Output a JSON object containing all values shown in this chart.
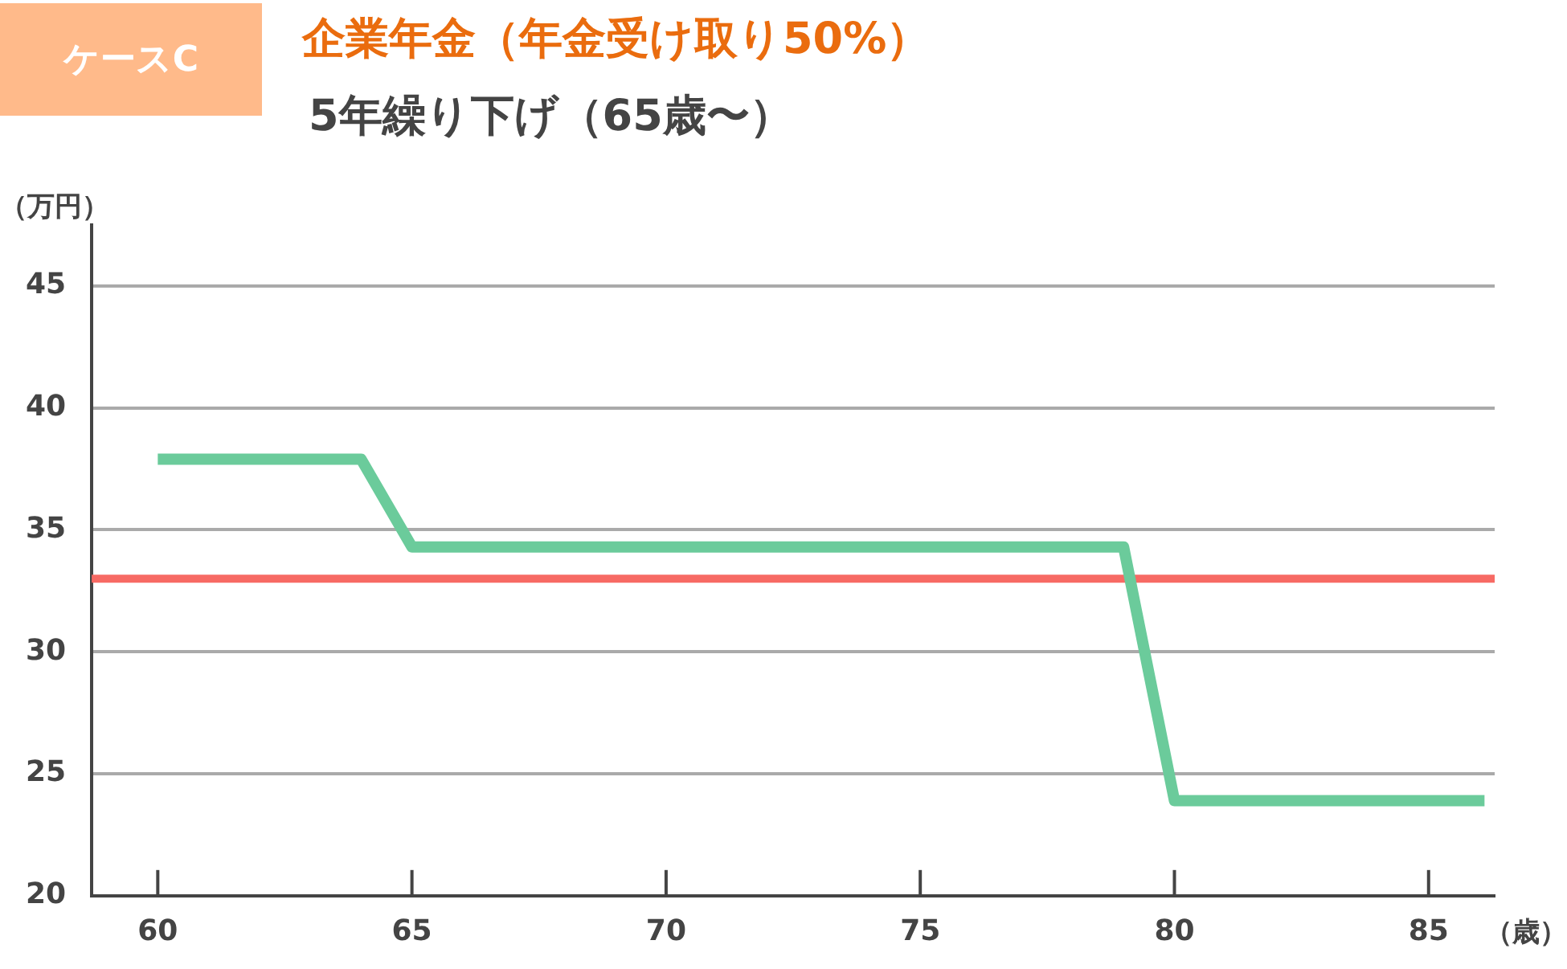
{
  "chart_data": {
    "type": "line",
    "title": "企業年金（年金受け取り50%）",
    "subtitle": "5年繰り下げ（65歳〜）",
    "annotations": [
      "ケースC"
    ],
    "ylabel": "（万円）",
    "xlabel": "（歳）",
    "series": [
      {
        "color": "#6bcb9b",
        "x": [
          60,
          64,
          65,
          79,
          80,
          86.1
        ],
        "values": [
          37.9,
          37.9,
          34.3,
          34.3,
          23.9,
          23.9
        ]
      }
    ],
    "ref_lines": [
      {
        "axis": "y",
        "value": 33,
        "color": "#f76a64"
      }
    ],
    "xlim": [
      58.7,
      86.3
    ],
    "xticks": [
      60,
      65,
      70,
      75,
      80,
      85
    ],
    "ylim": [
      20,
      47.5
    ],
    "yticks": [
      20,
      25,
      30,
      35,
      40,
      45
    ],
    "grid": "y",
    "legend": false,
    "marker": "none",
    "line_style": "solid"
  }
}
